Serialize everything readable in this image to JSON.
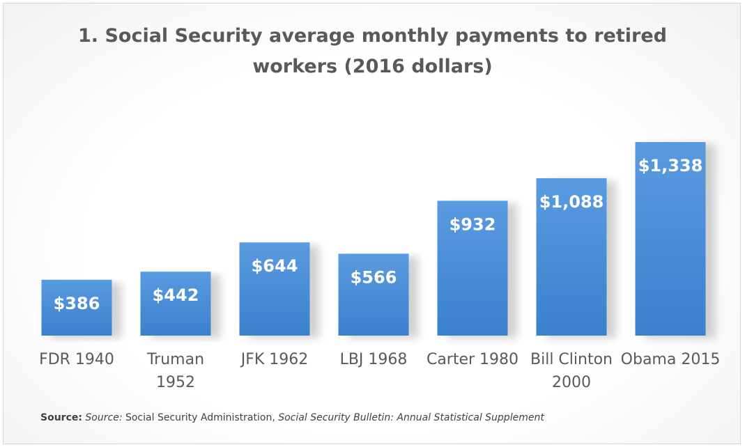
{
  "chart_data": {
    "type": "bar",
    "title_lines": [
      "1. Social Security average monthly payments to retired",
      "workers (2016 dollars)"
    ],
    "categories": [
      [
        "FDR 1940"
      ],
      [
        "Truman",
        "1952"
      ],
      [
        "JFK 1962"
      ],
      [
        "LBJ 1968"
      ],
      [
        "Carter  1980"
      ],
      [
        "Bill Clinton",
        "2000"
      ],
      [
        "Obama 2015"
      ]
    ],
    "values": [
      386,
      442,
      644,
      566,
      932,
      1088,
      1338
    ],
    "data_labels": [
      "$386",
      "$442",
      "$644",
      "$566",
      "$932",
      "$1,088",
      "$1,338"
    ],
    "ylim": [
      0,
      1338
    ],
    "grid": false,
    "legend": "none",
    "bar_color": "#4a8fd4"
  },
  "source": {
    "bold": "Source:",
    "italic_1": "Source:",
    "plain": " Social Security Administration, ",
    "italic_2": "Social Security Bulletin: Annual Statistical Supplement"
  }
}
